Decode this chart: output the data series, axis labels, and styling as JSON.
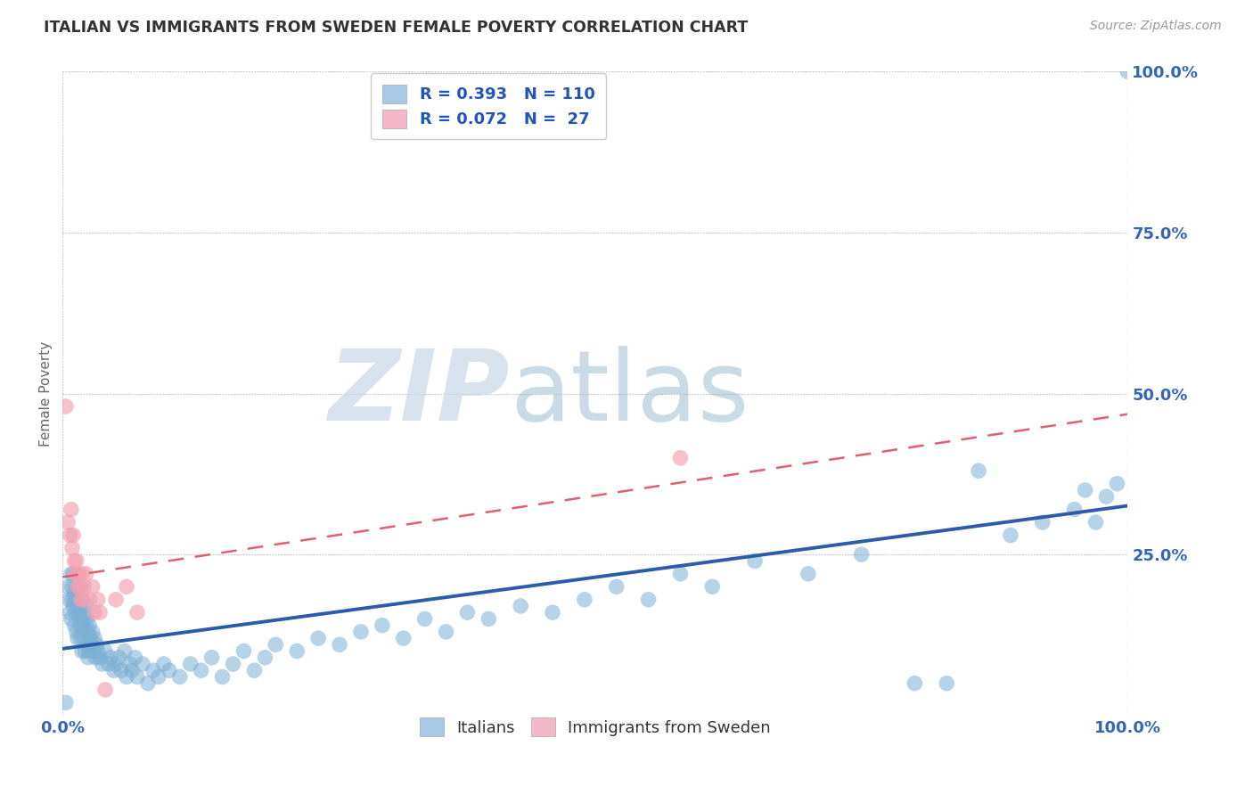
{
  "title": "ITALIAN VS IMMIGRANTS FROM SWEDEN FEMALE POVERTY CORRELATION CHART",
  "source": "Source: ZipAtlas.com",
  "ylabel": "Female Poverty",
  "legend_label_italians": "Italians",
  "legend_label_immigrants": "Immigrants from Sweden",
  "blue_color": "#7bafd4",
  "pink_color": "#f2a0b0",
  "blue_line_color": "#2a5caa",
  "pink_line_color": "#e06070",
  "background_color": "#ffffff",
  "grid_color": "#c8c8c8",
  "R_blue_label": "R = 0.393",
  "N_blue_label": "N = 110",
  "R_pink_label": "R = 0.072",
  "N_pink_label": "N =  27",
  "blue_legend_color": "#aac8e8",
  "pink_legend_color": "#f4b8c8",
  "blue_x": [
    0.003,
    0.005,
    0.006,
    0.007,
    0.008,
    0.008,
    0.009,
    0.009,
    0.01,
    0.01,
    0.011,
    0.011,
    0.012,
    0.012,
    0.013,
    0.013,
    0.014,
    0.014,
    0.015,
    0.015,
    0.016,
    0.016,
    0.017,
    0.017,
    0.018,
    0.018,
    0.019,
    0.019,
    0.02,
    0.02,
    0.021,
    0.021,
    0.022,
    0.022,
    0.023,
    0.023,
    0.024,
    0.024,
    0.025,
    0.025,
    0.026,
    0.027,
    0.028,
    0.029,
    0.03,
    0.031,
    0.032,
    0.033,
    0.035,
    0.037,
    0.04,
    0.043,
    0.045,
    0.048,
    0.05,
    0.053,
    0.055,
    0.058,
    0.06,
    0.063,
    0.065,
    0.068,
    0.07,
    0.075,
    0.08,
    0.085,
    0.09,
    0.095,
    0.1,
    0.11,
    0.12,
    0.13,
    0.14,
    0.15,
    0.16,
    0.17,
    0.18,
    0.19,
    0.2,
    0.22,
    0.24,
    0.26,
    0.28,
    0.3,
    0.32,
    0.34,
    0.36,
    0.38,
    0.4,
    0.43,
    0.46,
    0.49,
    0.52,
    0.55,
    0.58,
    0.61,
    0.65,
    0.7,
    0.75,
    0.8,
    0.83,
    0.86,
    0.89,
    0.92,
    0.95,
    0.96,
    0.97,
    0.98,
    0.99,
    1.0
  ],
  "blue_y": [
    0.02,
    0.2,
    0.18,
    0.16,
    0.22,
    0.15,
    0.2,
    0.18,
    0.22,
    0.17,
    0.19,
    0.14,
    0.18,
    0.16,
    0.2,
    0.13,
    0.18,
    0.12,
    0.16,
    0.2,
    0.14,
    0.18,
    0.12,
    0.16,
    0.15,
    0.1,
    0.18,
    0.14,
    0.16,
    0.12,
    0.15,
    0.1,
    0.13,
    0.17,
    0.11,
    0.15,
    0.09,
    0.13,
    0.14,
    0.1,
    0.12,
    0.11,
    0.13,
    0.1,
    0.12,
    0.09,
    0.11,
    0.1,
    0.09,
    0.08,
    0.1,
    0.08,
    0.09,
    0.07,
    0.08,
    0.09,
    0.07,
    0.1,
    0.06,
    0.08,
    0.07,
    0.09,
    0.06,
    0.08,
    0.05,
    0.07,
    0.06,
    0.08,
    0.07,
    0.06,
    0.08,
    0.07,
    0.09,
    0.06,
    0.08,
    0.1,
    0.07,
    0.09,
    0.11,
    0.1,
    0.12,
    0.11,
    0.13,
    0.14,
    0.12,
    0.15,
    0.13,
    0.16,
    0.15,
    0.17,
    0.16,
    0.18,
    0.2,
    0.18,
    0.22,
    0.2,
    0.24,
    0.22,
    0.25,
    0.05,
    0.05,
    0.38,
    0.28,
    0.3,
    0.32,
    0.35,
    0.3,
    0.34,
    0.36,
    1.0
  ],
  "pink_x": [
    0.003,
    0.005,
    0.007,
    0.008,
    0.009,
    0.01,
    0.011,
    0.012,
    0.013,
    0.014,
    0.015,
    0.016,
    0.017,
    0.018,
    0.019,
    0.02,
    0.022,
    0.025,
    0.028,
    0.03,
    0.033,
    0.035,
    0.04,
    0.05,
    0.06,
    0.07,
    0.58
  ],
  "pink_y": [
    0.48,
    0.3,
    0.28,
    0.32,
    0.26,
    0.28,
    0.24,
    0.22,
    0.24,
    0.2,
    0.22,
    0.2,
    0.18,
    0.22,
    0.18,
    0.2,
    0.22,
    0.18,
    0.2,
    0.16,
    0.18,
    0.16,
    0.04,
    0.18,
    0.2,
    0.16,
    0.4
  ]
}
